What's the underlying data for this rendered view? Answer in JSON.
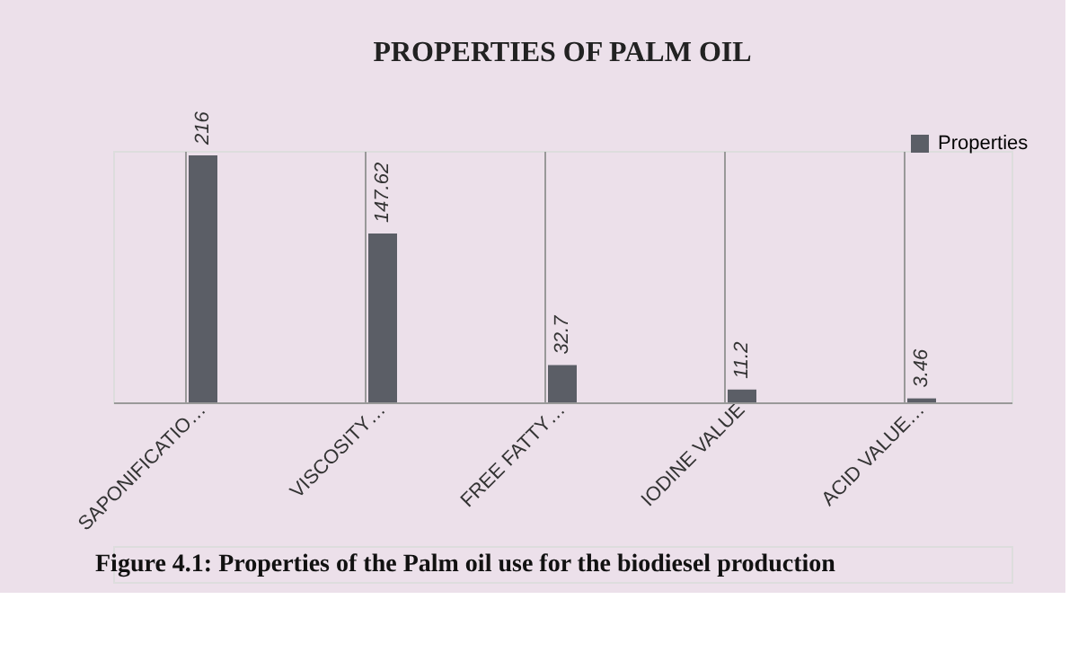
{
  "chart_data": {
    "type": "bar",
    "title": "PROPERTIES OF PALM OIL",
    "categories": [
      "SAPONIFICATIO…",
      "VISCOSITY…",
      "FREE FATTY…",
      "IODINE VALUE",
      "ACID VALUE…"
    ],
    "series": [
      {
        "name": "Properties",
        "color": "#5b5e66",
        "values": [
          216,
          147.62,
          32.7,
          11.2,
          3.46
        ]
      }
    ],
    "data_labels": true,
    "grid": "x",
    "legend": "top right",
    "annotations": [
      "Figure 4.1: Properties of the Palm oil use for the biodiesel production"
    ]
  }
}
